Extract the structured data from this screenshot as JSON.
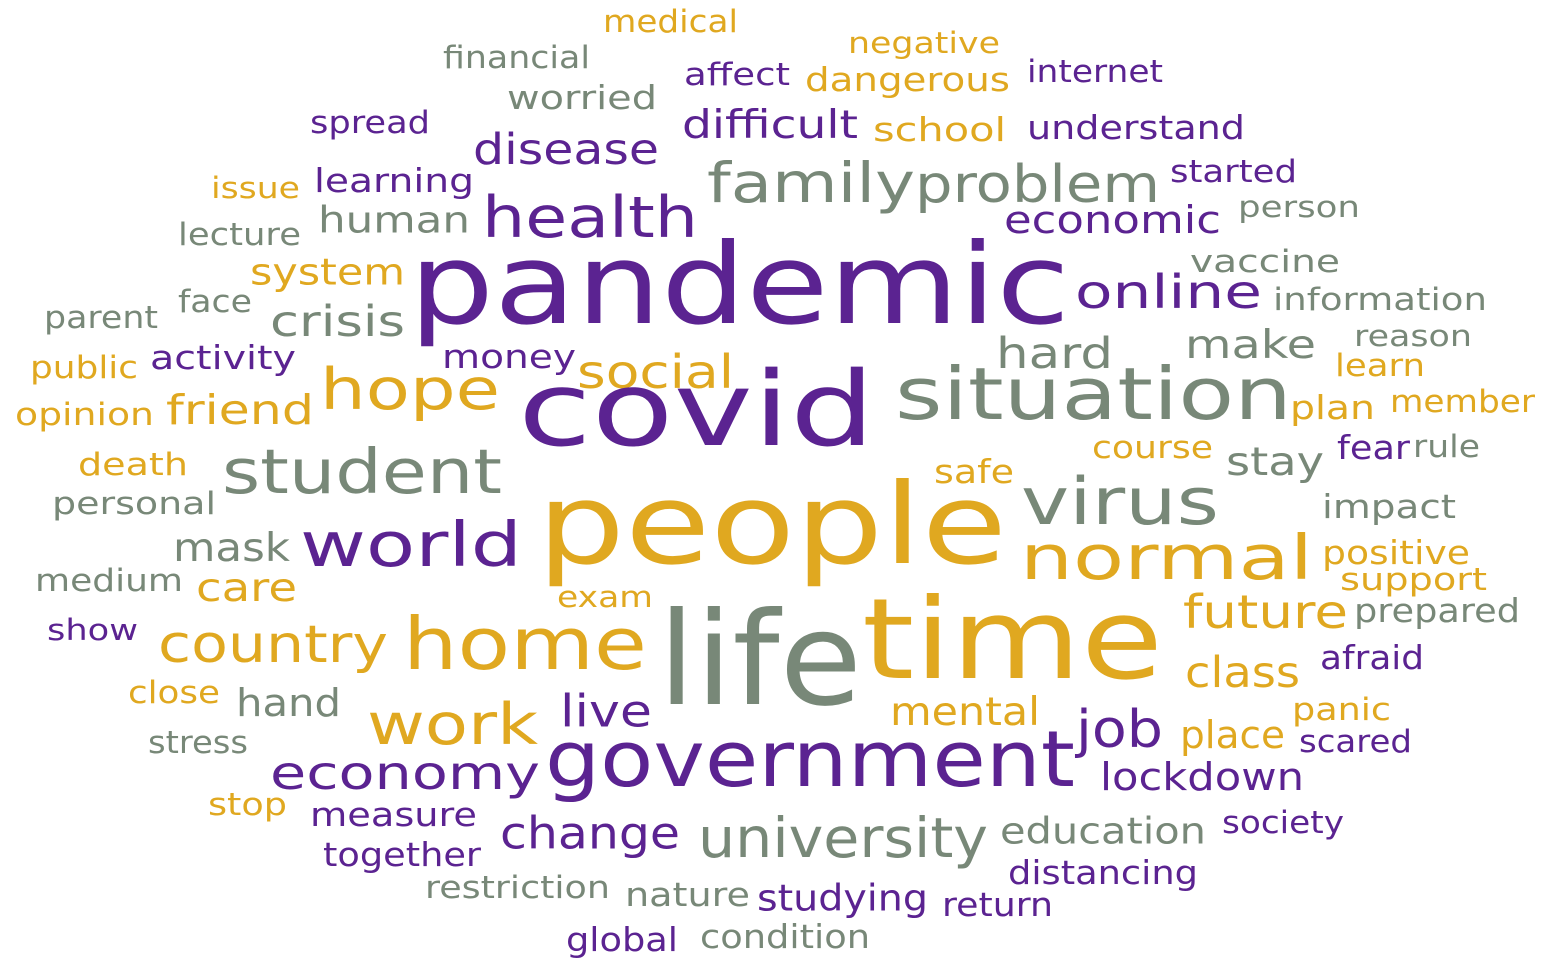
{
  "words": [
    {
      "text": "medical",
      "color": "#e0a820"
    },
    {
      "text": "financial",
      "color": "#788878"
    },
    {
      "text": "negative",
      "color": "#e0a820"
    },
    {
      "text": "affect",
      "color": "#5b2391"
    },
    {
      "text": "dangerous",
      "color": "#e0a820"
    },
    {
      "text": "internet",
      "color": "#5b2391"
    },
    {
      "text": "worried",
      "color": "#788878"
    },
    {
      "text": "spread",
      "color": "#5b2391"
    },
    {
      "text": "difficult",
      "color": "#5b2391"
    },
    {
      "text": "school",
      "color": "#e0a820"
    },
    {
      "text": "understand",
      "color": "#5b2391"
    },
    {
      "text": "disease",
      "color": "#5b2391"
    },
    {
      "text": "issue",
      "color": "#e0a820"
    },
    {
      "text": "learning",
      "color": "#5b2391"
    },
    {
      "text": "family",
      "color": "#788878"
    },
    {
      "text": "problem",
      "color": "#788878"
    },
    {
      "text": "started",
      "color": "#5b2391"
    },
    {
      "text": "person",
      "color": "#788878"
    },
    {
      "text": "lecture",
      "color": "#788878"
    },
    {
      "text": "human",
      "color": "#788878"
    },
    {
      "text": "health",
      "color": "#5b2391"
    },
    {
      "text": "economic",
      "color": "#5b2391"
    },
    {
      "text": "system",
      "color": "#e0a820"
    },
    {
      "text": "pandemic",
      "color": "#5b2391"
    },
    {
      "text": "vaccine",
      "color": "#788878"
    },
    {
      "text": "online",
      "color": "#5b2391"
    },
    {
      "text": "information",
      "color": "#788878"
    },
    {
      "text": "parent",
      "color": "#788878"
    },
    {
      "text": "face",
      "color": "#788878"
    },
    {
      "text": "crisis",
      "color": "#788878"
    },
    {
      "text": "reason",
      "color": "#788878"
    },
    {
      "text": "public",
      "color": "#e0a820"
    },
    {
      "text": "activity",
      "color": "#5b2391"
    },
    {
      "text": "money",
      "color": "#5b2391"
    },
    {
      "text": "social",
      "color": "#e0a820"
    },
    {
      "text": "hard",
      "color": "#788878"
    },
    {
      "text": "make",
      "color": "#788878"
    },
    {
      "text": "learn",
      "color": "#e0a820"
    },
    {
      "text": "hope",
      "color": "#e0a820"
    },
    {
      "text": "covid",
      "color": "#5b2391"
    },
    {
      "text": "situation",
      "color": "#788878"
    },
    {
      "text": "opinion",
      "color": "#e0a820"
    },
    {
      "text": "friend",
      "color": "#e0a820"
    },
    {
      "text": "plan",
      "color": "#e0a820"
    },
    {
      "text": "member",
      "color": "#e0a820"
    },
    {
      "text": "course",
      "color": "#e0a820"
    },
    {
      "text": "fear",
      "color": "#5b2391"
    },
    {
      "text": "rule",
      "color": "#788878"
    },
    {
      "text": "death",
      "color": "#e0a820"
    },
    {
      "text": "student",
      "color": "#788878"
    },
    {
      "text": "safe",
      "color": "#e0a820"
    },
    {
      "text": "stay",
      "color": "#788878"
    },
    {
      "text": "virus",
      "color": "#788878"
    },
    {
      "text": "personal",
      "color": "#788878"
    },
    {
      "text": "impact",
      "color": "#788878"
    },
    {
      "text": "people",
      "color": "#e0a820"
    },
    {
      "text": "mask",
      "color": "#788878"
    },
    {
      "text": "world",
      "color": "#5b2391"
    },
    {
      "text": "normal",
      "color": "#e0a820"
    },
    {
      "text": "positive",
      "color": "#e0a820"
    },
    {
      "text": "medium",
      "color": "#788878"
    },
    {
      "text": "care",
      "color": "#e0a820"
    },
    {
      "text": "support",
      "color": "#e0a820"
    },
    {
      "text": "exam",
      "color": "#e0a820"
    },
    {
      "text": "future",
      "color": "#e0a820"
    },
    {
      "text": "prepared",
      "color": "#788878"
    },
    {
      "text": "show",
      "color": "#5b2391"
    },
    {
      "text": "country",
      "color": "#e0a820"
    },
    {
      "text": "home",
      "color": "#e0a820"
    },
    {
      "text": "life",
      "color": "#788878"
    },
    {
      "text": "time",
      "color": "#e0a820"
    },
    {
      "text": "afraid",
      "color": "#5b2391"
    },
    {
      "text": "class",
      "color": "#e0a820"
    },
    {
      "text": "close",
      "color": "#e0a820"
    },
    {
      "text": "hand",
      "color": "#788878"
    },
    {
      "text": "live",
      "color": "#5b2391"
    },
    {
      "text": "mental",
      "color": "#e0a820"
    },
    {
      "text": "panic",
      "color": "#e0a820"
    },
    {
      "text": "work",
      "color": "#e0a820"
    },
    {
      "text": "job",
      "color": "#5b2391"
    },
    {
      "text": "place",
      "color": "#e0a820"
    },
    {
      "text": "scared",
      "color": "#5b2391"
    },
    {
      "text": "stress",
      "color": "#788878"
    },
    {
      "text": "economy",
      "color": "#5b2391"
    },
    {
      "text": "government",
      "color": "#5b2391"
    },
    {
      "text": "lockdown",
      "color": "#5b2391"
    },
    {
      "text": "stop",
      "color": "#e0a820"
    },
    {
      "text": "measure",
      "color": "#5b2391"
    },
    {
      "text": "society",
      "color": "#5b2391"
    },
    {
      "text": "change",
      "color": "#5b2391"
    },
    {
      "text": "university",
      "color": "#788878"
    },
    {
      "text": "education",
      "color": "#788878"
    },
    {
      "text": "together",
      "color": "#5b2391"
    },
    {
      "text": "distancing",
      "color": "#5b2391"
    },
    {
      "text": "restriction",
      "color": "#788878"
    },
    {
      "text": "nature",
      "color": "#788878"
    },
    {
      "text": "studying",
      "color": "#5b2391"
    },
    {
      "text": "return",
      "color": "#5b2391"
    },
    {
      "text": "global",
      "color": "#5b2391"
    },
    {
      "text": "condition",
      "color": "#788878"
    }
  ]
}
